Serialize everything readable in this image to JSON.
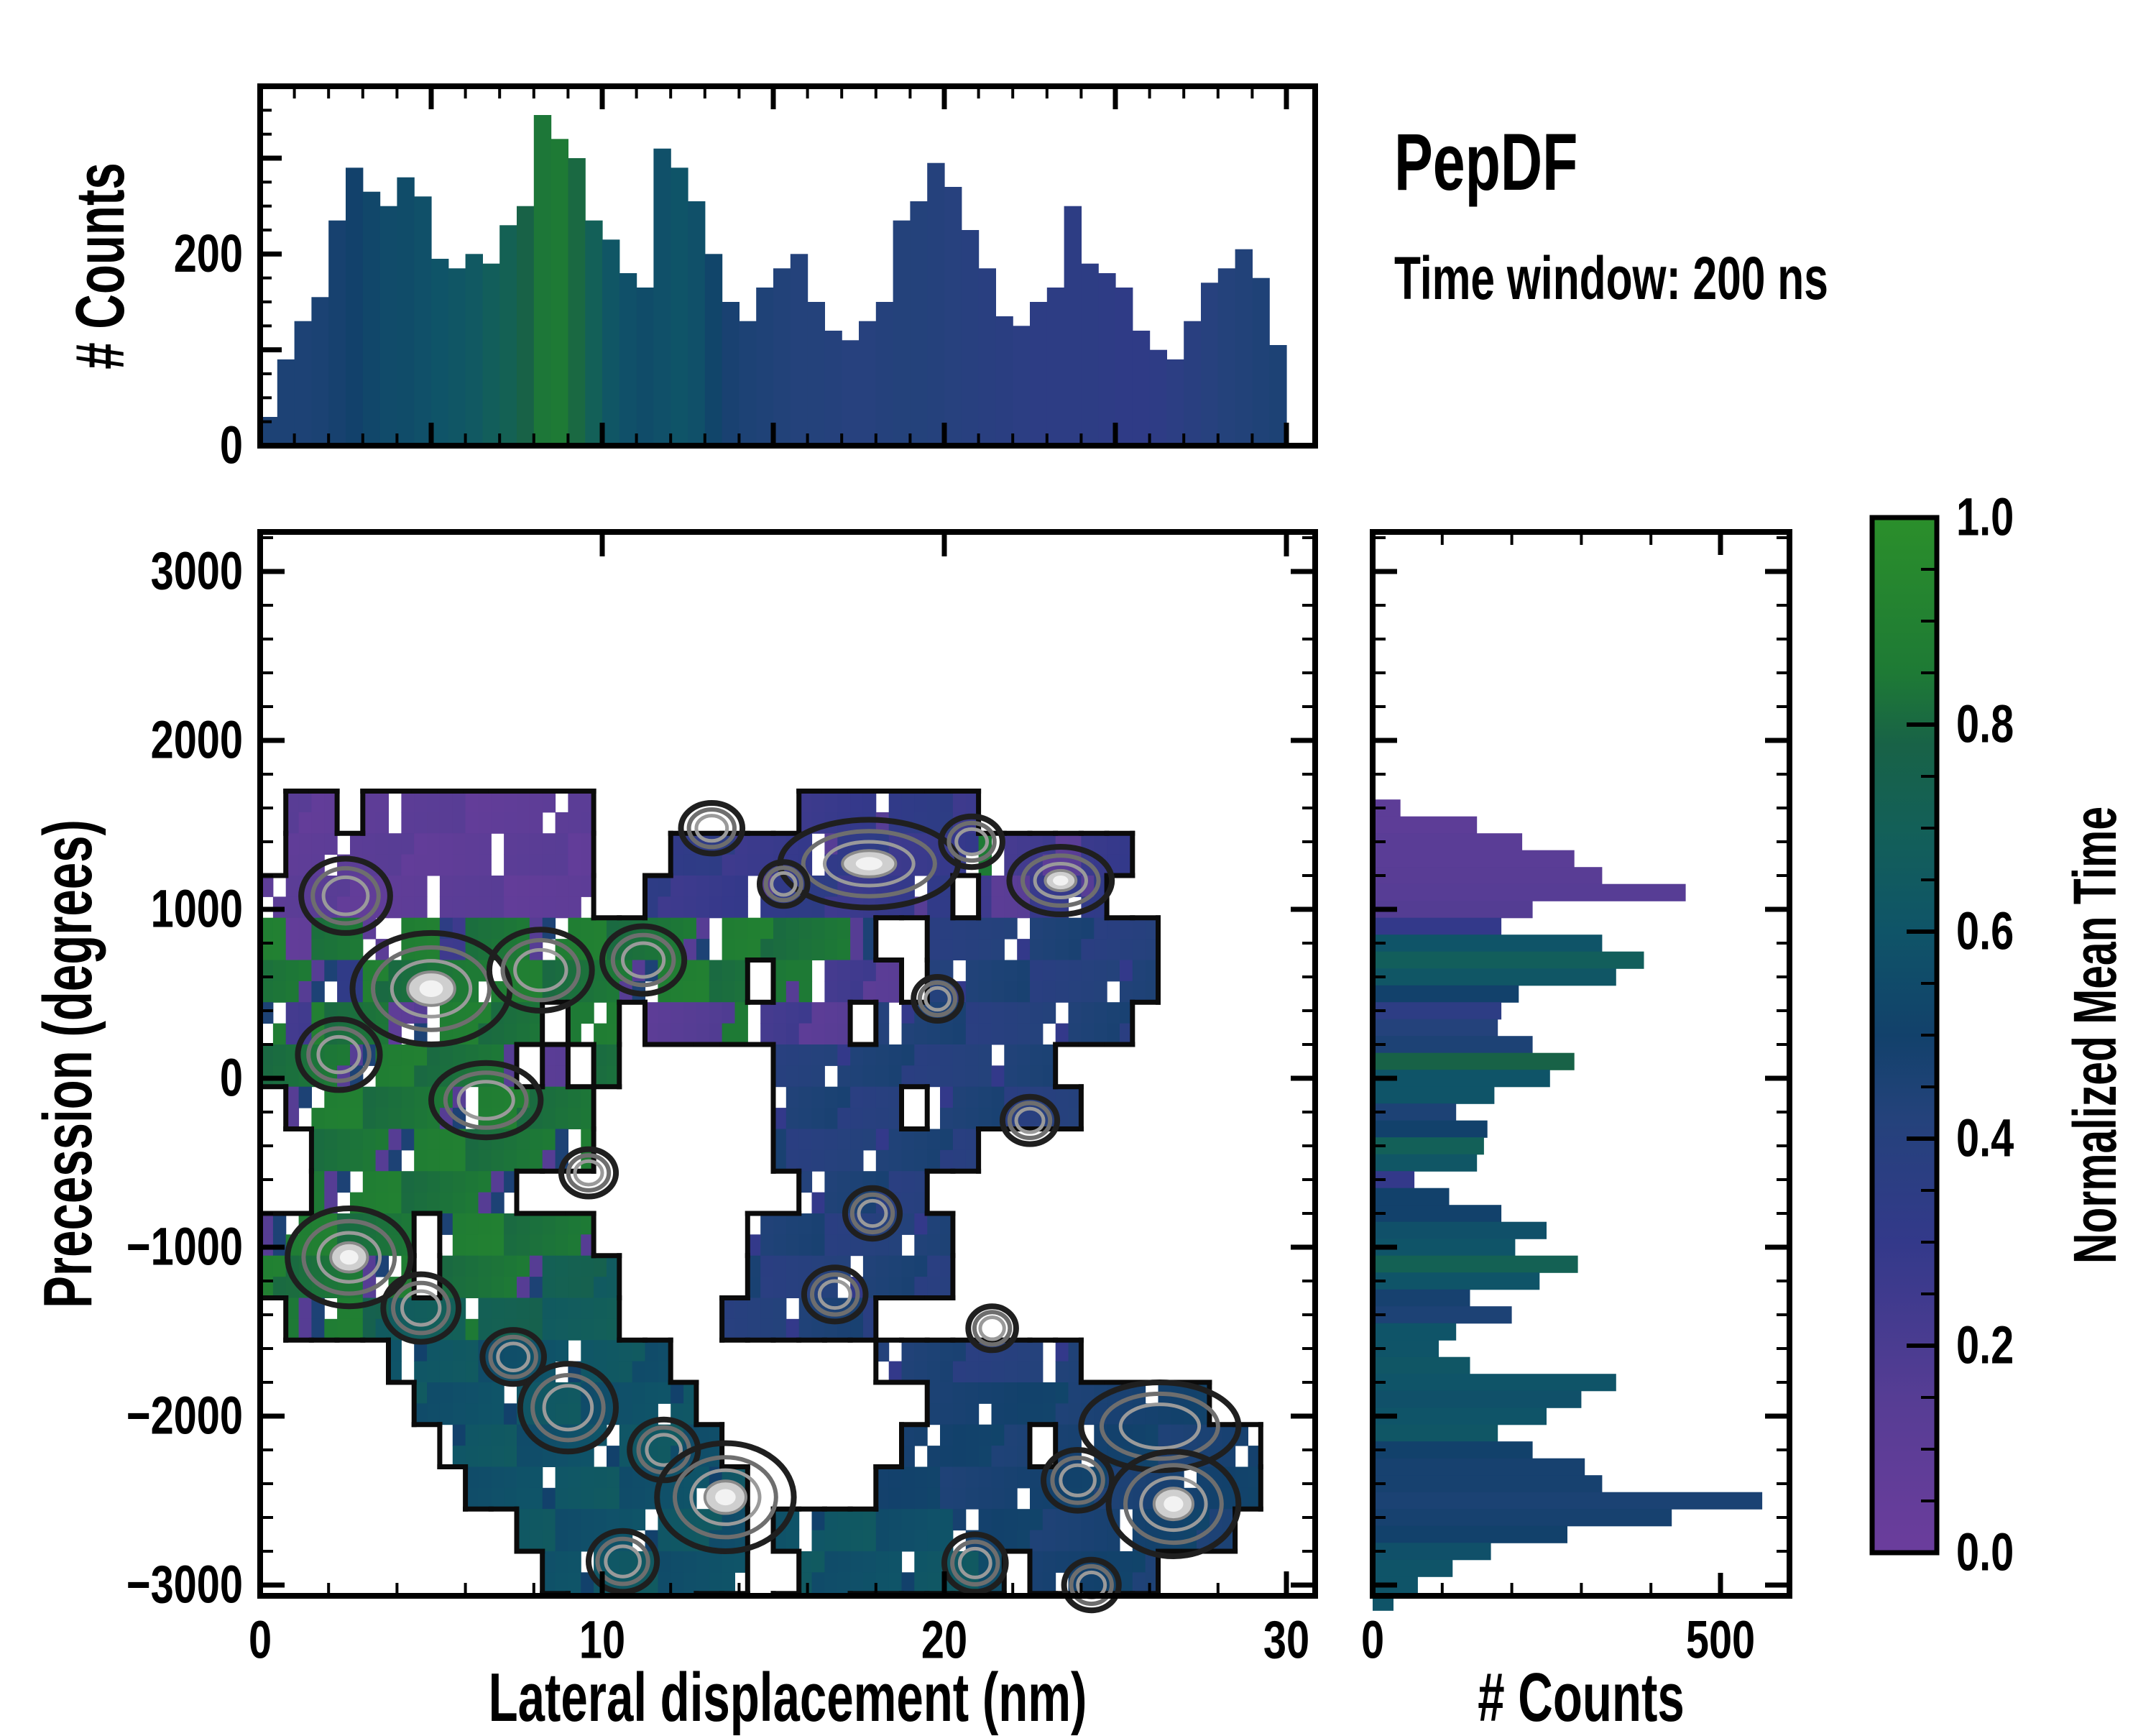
{
  "title": {
    "main": "PepDF",
    "subtitle": "Time window: 200 ns"
  },
  "colors": {
    "background": "#ffffff",
    "spine": "#000000",
    "cmap_stops": [
      [
        0.0,
        "#6b3d9c"
      ],
      [
        0.15,
        "#563d94"
      ],
      [
        0.3,
        "#33398a"
      ],
      [
        0.42,
        "#24427b"
      ],
      [
        0.5,
        "#12416b"
      ],
      [
        0.6,
        "#0f5468"
      ],
      [
        0.7,
        "#136058"
      ],
      [
        0.78,
        "#186247"
      ],
      [
        0.85,
        "#1e7a35"
      ],
      [
        1.0,
        "#2b8f2b"
      ]
    ]
  },
  "chart_data": [
    {
      "name": "top_histogram",
      "type": "bar",
      "orientation": "vertical",
      "ylabel": "# Counts",
      "ylim": [
        0,
        375
      ],
      "yticks": [
        {
          "v": 0,
          "label": "0"
        },
        {
          "v": 200,
          "label": "200"
        }
      ],
      "x_start": 0.25,
      "x_step": 0.5,
      "values": [
        30,
        90,
        130,
        155,
        235,
        290,
        265,
        250,
        280,
        260,
        195,
        185,
        200,
        190,
        230,
        250,
        345,
        320,
        300,
        235,
        215,
        180,
        165,
        310,
        290,
        255,
        200,
        150,
        130,
        165,
        185,
        200,
        150,
        120,
        110,
        130,
        150,
        235,
        255,
        295,
        270,
        225,
        185,
        135,
        125,
        150,
        165,
        250,
        190,
        180,
        165,
        120,
        100,
        90,
        130,
        170,
        185,
        205,
        175,
        105
      ],
      "color_values": [
        0.45,
        0.45,
        0.45,
        0.46,
        0.48,
        0.5,
        0.53,
        0.55,
        0.56,
        0.58,
        0.6,
        0.62,
        0.64,
        0.68,
        0.72,
        0.78,
        0.84,
        0.85,
        0.8,
        0.7,
        0.62,
        0.58,
        0.56,
        0.58,
        0.6,
        0.58,
        0.52,
        0.47,
        0.45,
        0.44,
        0.43,
        0.42,
        0.42,
        0.41,
        0.4,
        0.4,
        0.41,
        0.42,
        0.42,
        0.41,
        0.4,
        0.39,
        0.38,
        0.37,
        0.36,
        0.35,
        0.35,
        0.35,
        0.35,
        0.34,
        0.33,
        0.33,
        0.34,
        0.36,
        0.38,
        0.4,
        0.42,
        0.43,
        0.44,
        0.45
      ]
    },
    {
      "name": "main_heatmap",
      "type": "heatmap",
      "xlabel": "Lateral displacement (nm)",
      "ylabel": "Precession (degrees)",
      "xlim": [
        0,
        30.8
      ],
      "ylim": [
        -3064,
        3234
      ],
      "xticks": [
        {
          "v": 0,
          "label": "0"
        },
        {
          "v": 10,
          "label": "10"
        },
        {
          "v": 20,
          "label": "20"
        },
        {
          "v": 30,
          "label": "30"
        }
      ],
      "yticks": [
        {
          "v": 3000,
          "label": "3000"
        },
        {
          "v": 2000,
          "label": "2000"
        },
        {
          "v": 1000,
          "label": "1000"
        },
        {
          "v": 0,
          "label": "0"
        },
        {
          "v": -1000,
          "label": "−1000"
        },
        {
          "v": -2000,
          "label": "−2000"
        },
        {
          "v": -3000,
          "label": "−3000"
        }
      ],
      "cell_w_nm": 0.75,
      "cell_h_deg": 250,
      "y_top": 1700,
      "value_map": {
        "p": 0.1,
        "q": 0.18,
        "i": 0.3,
        "b": 0.42,
        "d": 0.48,
        "t": 0.6,
        "v": 0.7,
        "g": 0.85,
        "G": 0.95
      },
      "rows": [
        ".pp.ppppppppp........iiiiiii............",
        ".pppppppppppp...iiiiiiiiiiiiqqqqii......",
        "ppppppppppppp..iiiiiiiiiiii.qqiii.......",
        "gpggpggigggggggggggggggg..bbbbbbbbb.....",
        "gggiggggqgggggggggg.gqqqq.bbbbbbbbb.....",
        "gqgggpggggg.qg.qqqqqqqq.bbbbbbbbbb......",
        "gggggggggg.p.g......bbbbbbbbbbb.........",
        ".gggggggggggg.......bbbbb.bbbbbb........",
        "..ggggggggggg.......bbbbbbbb............",
        "..gggggggg...........bbbbb..............",
        "gggggg.gggggg......bbbbbbbb.............",
        "gggggg.ggggvvv.....bbbbbbbb.............",
        ".gggvvvvvvvvvv....bbbbbb................",
        ".....ttttttttttt........bbbbbbbb........",
        "......ttttttttttt.........ddddddddddd...",
        ".......ttttttttttt.......ddddd.dddddddd.",
        "........ttttttttttt.....ddddddddddddddd.",
        "..........ttttttttt.tttttttddddddddddd..",
        "...........tttttttt..tttttttt.ddddd.....",
        "............ttttt...ttt................."
      ],
      "hotspots": [
        [
          2.5,
          1080,
          1.3,
          220,
          0
        ],
        [
          13.2,
          1480,
          0.9,
          150,
          0
        ],
        [
          17.8,
          1270,
          2.6,
          260,
          1
        ],
        [
          20.8,
          1400,
          0.9,
          150,
          0
        ],
        [
          23.4,
          1170,
          1.5,
          200,
          1
        ],
        [
          15.3,
          1150,
          0.7,
          130,
          0
        ],
        [
          5.0,
          530,
          2.3,
          330,
          1
        ],
        [
          8.2,
          640,
          1.5,
          240,
          0
        ],
        [
          11.2,
          700,
          1.2,
          200,
          0
        ],
        [
          2.3,
          140,
          1.2,
          210,
          0
        ],
        [
          6.6,
          -130,
          1.6,
          220,
          0
        ],
        [
          9.6,
          -560,
          0.8,
          140,
          0
        ],
        [
          2.6,
          -1060,
          1.8,
          290,
          1
        ],
        [
          4.7,
          -1360,
          1.1,
          200,
          0
        ],
        [
          7.4,
          -1650,
          0.9,
          160,
          0
        ],
        [
          9.0,
          -1950,
          1.4,
          260,
          0
        ],
        [
          11.8,
          -2200,
          1.0,
          180,
          0
        ],
        [
          13.6,
          -2480,
          2.0,
          320,
          1
        ],
        [
          10.6,
          -2860,
          1.0,
          180,
          0
        ],
        [
          17.9,
          -800,
          0.8,
          150,
          0
        ],
        [
          16.8,
          -1280,
          0.9,
          160,
          0
        ],
        [
          21.4,
          -1480,
          0.7,
          130,
          0
        ],
        [
          26.3,
          -2060,
          2.3,
          260,
          0
        ],
        [
          26.7,
          -2520,
          1.9,
          310,
          1
        ],
        [
          23.9,
          -2380,
          1.0,
          180,
          0
        ],
        [
          20.9,
          -2870,
          0.9,
          170,
          0
        ],
        [
          24.3,
          -3000,
          0.8,
          150,
          0
        ],
        [
          19.8,
          470,
          0.7,
          130,
          0
        ],
        [
          22.5,
          -250,
          0.8,
          140,
          0
        ]
      ]
    },
    {
      "name": "right_histogram",
      "type": "bar",
      "orientation": "horizontal",
      "xlabel": "# Counts",
      "xlim": [
        0,
        600
      ],
      "xticks": [
        {
          "v": 0,
          "label": "0"
        },
        {
          "v": 500,
          "label": "500"
        }
      ],
      "y_start": 1600,
      "y_step": -100,
      "values": [
        40,
        150,
        215,
        290,
        330,
        450,
        230,
        185,
        330,
        390,
        350,
        210,
        185,
        180,
        230,
        290,
        255,
        175,
        120,
        165,
        160,
        150,
        60,
        110,
        185,
        250,
        205,
        295,
        240,
        140,
        200,
        120,
        95,
        140,
        350,
        300,
        250,
        180,
        230,
        305,
        330,
        560,
        430,
        280,
        170,
        115,
        65,
        30
      ],
      "color_values": [
        0.1,
        0.1,
        0.12,
        0.12,
        0.13,
        0.14,
        0.16,
        0.3,
        0.6,
        0.68,
        0.62,
        0.5,
        0.35,
        0.42,
        0.45,
        0.78,
        0.6,
        0.6,
        0.45,
        0.5,
        0.7,
        0.62,
        0.3,
        0.5,
        0.5,
        0.58,
        0.6,
        0.72,
        0.6,
        0.48,
        0.45,
        0.6,
        0.6,
        0.62,
        0.6,
        0.58,
        0.6,
        0.62,
        0.5,
        0.48,
        0.48,
        0.46,
        0.48,
        0.5,
        0.58,
        0.6,
        0.6,
        0.6
      ]
    },
    {
      "name": "colorbar",
      "type": "colorbar",
      "label": "Normalized Mean Time",
      "tick_values": [
        1.0,
        0.8,
        0.6,
        0.4,
        0.2,
        0.0
      ],
      "tick_labels": [
        "1.0",
        "0.8",
        "0.6",
        "0.4",
        "0.2",
        "0.0"
      ],
      "minor_step": 0.05
    }
  ]
}
